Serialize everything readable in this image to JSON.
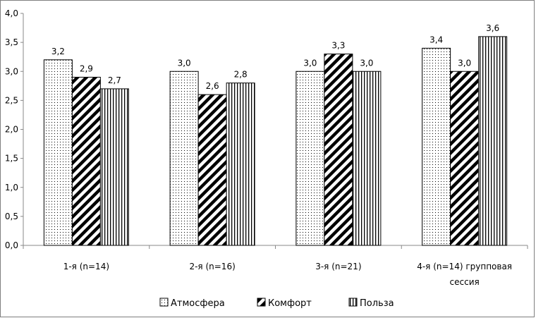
{
  "chart_data": {
    "type": "bar",
    "title": "",
    "xlabel": "",
    "ylabel": "",
    "ylim": [
      0,
      4
    ],
    "yticks": [
      "0,0",
      "0,5",
      "1,0",
      "1,5",
      "2,0",
      "2,5",
      "3,0",
      "3,5",
      "4,0"
    ],
    "categories": [
      [
        "1-я (n=14)"
      ],
      [
        "2-я (n=16)"
      ],
      [
        "3-я (n=21)"
      ],
      [
        "4-я (n=14) групповая",
        "сессия"
      ]
    ],
    "series": [
      {
        "name": "Атмосфера",
        "pattern": "dots",
        "values": [
          3.2,
          3.0,
          3.0,
          3.4
        ],
        "labels": [
          "3,2",
          "3,0",
          "3,0",
          "3,4"
        ]
      },
      {
        "name": "Комфорт",
        "pattern": "diagonal",
        "values": [
          2.9,
          2.6,
          3.3,
          3.0
        ],
        "labels": [
          "2,9",
          "2,6",
          "3,3",
          "3,0"
        ]
      },
      {
        "name": "Польза",
        "pattern": "vertical",
        "values": [
          2.7,
          2.8,
          3.0,
          3.6
        ],
        "labels": [
          "2,7",
          "2,8",
          "3,0",
          "3,6"
        ]
      }
    ],
    "grid": false,
    "legend_position": "bottom",
    "colors": {
      "bar_fill": "#ffffff",
      "bar_stroke": "#000000",
      "axis": "#888888"
    }
  }
}
